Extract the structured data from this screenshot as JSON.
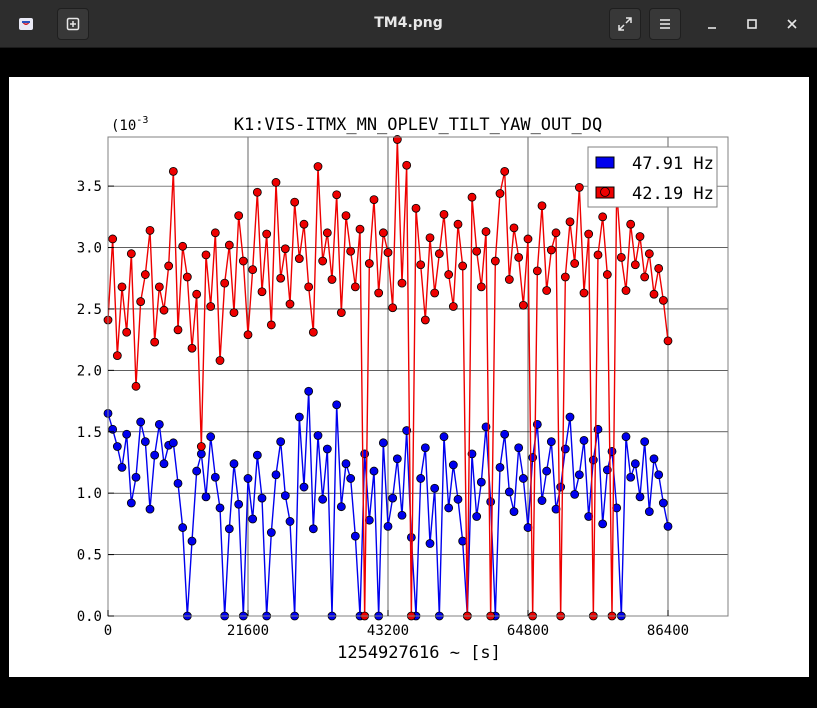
{
  "window": {
    "title": "TM4.png",
    "app_icon": "image-viewer-icon",
    "new_button_icon": "new-document-icon",
    "fullscreen_icon": "fullscreen-icon",
    "menu_icon": "hamburger-menu-icon",
    "minimize_icon": "minimize-icon",
    "maximize_icon": "maximize-icon",
    "close_icon": "close-icon"
  },
  "chart_data": {
    "type": "scatter",
    "title": "K1:VIS-ITMX_MN_OPLEV_TILT_YAW_OUT_DQ",
    "xlabel": "1254927616 ~ [s]",
    "ylabel": "",
    "y_exponent_label": "(10",
    "y_exponent_value": "-3",
    "xlim": [
      0,
      86400
    ],
    "ylim": [
      0,
      0.0039
    ],
    "xticks": [
      "0",
      "21600",
      "43200",
      "64800",
      "86400"
    ],
    "yticks": [
      "0.0",
      "0.5",
      "1.0",
      "1.5",
      "2.0",
      "2.5",
      "3.0",
      "3.5"
    ],
    "grid": true,
    "legend_position": "top-right",
    "marker": "circle with stem",
    "series": [
      {
        "name": "47.91 Hz",
        "color": "#0000ee",
        "x": [
          0,
          720,
          1440,
          2160,
          2880,
          3600,
          4320,
          5040,
          5760,
          6480,
          7200,
          7920,
          8640,
          9360,
          10080,
          10800,
          11520,
          12240,
          12960,
          13680,
          14400,
          15120,
          15840,
          16560,
          17280,
          18000,
          18720,
          19440,
          20160,
          20880,
          21600,
          22320,
          23040,
          23760,
          24480,
          25200,
          25920,
          26640,
          27360,
          28080,
          28800,
          29520,
          30240,
          30960,
          31680,
          32400,
          33120,
          33840,
          34560,
          35280,
          36000,
          36720,
          37440,
          38160,
          38880,
          39600,
          40320,
          41040,
          41760,
          42480,
          43200,
          43920,
          44640,
          45360,
          46080,
          46800,
          47520,
          48240,
          48960,
          49680,
          50400,
          51120,
          51840,
          52560,
          53280,
          54000,
          54720,
          55440,
          56160,
          56880,
          57600,
          58320,
          59040,
          59760,
          60480,
          61200,
          61920,
          62640,
          63360,
          64080,
          64800,
          65520,
          66240,
          66960,
          67680,
          68400,
          69120,
          69840,
          70560,
          71280,
          72000,
          72720,
          73440,
          74160,
          74880,
          75600,
          76320,
          77040,
          77760,
          78480,
          79200,
          79920,
          80640,
          81360,
          82080,
          82800,
          83520,
          84240,
          84960,
          85680,
          86400
        ],
        "values": [
          0.00165,
          0.00152,
          0.00138,
          0.00121,
          0.00148,
          0.00092,
          0.00113,
          0.00158,
          0.00142,
          0.00087,
          0.00131,
          0.00156,
          0.00124,
          0.00139,
          0.00141,
          0.00108,
          0.00072,
          0.0,
          0.00061,
          0.00118,
          0.00132,
          0.00097,
          0.00146,
          0.00113,
          0.00088,
          0.0,
          0.00071,
          0.00124,
          0.00091,
          0.0,
          0.00112,
          0.00079,
          0.00131,
          0.00096,
          0.0,
          0.00068,
          0.00115,
          0.00142,
          0.00098,
          0.00077,
          0.0,
          0.00162,
          0.00105,
          0.00183,
          0.00071,
          0.00147,
          0.00095,
          0.00136,
          0.0,
          0.00172,
          0.00089,
          0.00124,
          0.00112,
          0.00065,
          0.0,
          0.00132,
          0.00078,
          0.00118,
          0.0,
          0.00141,
          0.00073,
          0.00096,
          0.00128,
          0.00082,
          0.00151,
          0.00064,
          0.0,
          0.00112,
          0.00137,
          0.00059,
          0.00104,
          0.0,
          0.00146,
          0.00088,
          0.00123,
          0.00095,
          0.00061,
          0.0,
          0.00132,
          0.00081,
          0.00109,
          0.00154,
          0.00093,
          0.0,
          0.00121,
          0.00148,
          0.00101,
          0.00085,
          0.00137,
          0.00112,
          0.00072,
          0.00129,
          0.00156,
          0.00094,
          0.00118,
          0.00142,
          0.00087,
          0.00105,
          0.00136,
          0.00162,
          0.00099,
          0.00115,
          0.00143,
          0.00081,
          0.00127,
          0.00152,
          0.00075,
          0.00119,
          0.00134,
          0.00088,
          0.0,
          0.00146,
          0.00113,
          0.00124,
          0.00097,
          0.00142,
          0.00085,
          0.00128,
          0.00115,
          0.00092,
          0.00073
        ]
      },
      {
        "name": "42.19 Hz",
        "color": "#ee0000",
        "x": [
          0,
          720,
          1440,
          2160,
          2880,
          3600,
          4320,
          5040,
          5760,
          6480,
          7200,
          7920,
          8640,
          9360,
          10080,
          10800,
          11520,
          12240,
          12960,
          13680,
          14400,
          15120,
          15840,
          16560,
          17280,
          18000,
          18720,
          19440,
          20160,
          20880,
          21600,
          22320,
          23040,
          23760,
          24480,
          25200,
          25920,
          26640,
          27360,
          28080,
          28800,
          29520,
          30240,
          30960,
          31680,
          32400,
          33120,
          33840,
          34560,
          35280,
          36000,
          36720,
          37440,
          38160,
          38880,
          39600,
          40320,
          41040,
          41760,
          42480,
          43200,
          43920,
          44640,
          45360,
          46080,
          46800,
          47520,
          48240,
          48960,
          49680,
          50400,
          51120,
          51840,
          52560,
          53280,
          54000,
          54720,
          55440,
          56160,
          56880,
          57600,
          58320,
          59040,
          59760,
          60480,
          61200,
          61920,
          62640,
          63360,
          64080,
          64800,
          65520,
          66240,
          66960,
          67680,
          68400,
          69120,
          69840,
          70560,
          71280,
          72000,
          72720,
          73440,
          74160,
          74880,
          75600,
          76320,
          77040,
          77760,
          78480,
          79200,
          79920,
          80640,
          81360,
          82080,
          82800,
          83520,
          84240,
          84960,
          85680,
          86400
        ],
        "values": [
          0.00241,
          0.00307,
          0.00212,
          0.00268,
          0.00231,
          0.00295,
          0.00187,
          0.00256,
          0.00278,
          0.00314,
          0.00223,
          0.00268,
          0.00249,
          0.00285,
          0.00362,
          0.00233,
          0.00301,
          0.00276,
          0.00218,
          0.00262,
          0.00138,
          0.00294,
          0.00252,
          0.00312,
          0.00208,
          0.00271,
          0.00302,
          0.00247,
          0.00326,
          0.00289,
          0.00229,
          0.00282,
          0.00345,
          0.00264,
          0.00311,
          0.00237,
          0.00353,
          0.00275,
          0.00299,
          0.00254,
          0.00337,
          0.00291,
          0.00319,
          0.00268,
          0.00231,
          0.00366,
          0.00289,
          0.00312,
          0.00274,
          0.00343,
          0.00247,
          0.00326,
          0.00297,
          0.00268,
          0.00315,
          0.0,
          0.00287,
          0.00339,
          0.00263,
          0.00312,
          0.00296,
          0.00251,
          0.00388,
          0.00271,
          0.00367,
          0.0,
          0.00332,
          0.00286,
          0.00241,
          0.00308,
          0.00263,
          0.00295,
          0.00327,
          0.00278,
          0.00252,
          0.00319,
          0.00285,
          0.0,
          0.00341,
          0.00297,
          0.00268,
          0.00313,
          0.0,
          0.00289,
          0.00344,
          0.00362,
          0.00274,
          0.00316,
          0.00292,
          0.00253,
          0.00307,
          0.0,
          0.00281,
          0.00334,
          0.00265,
          0.00298,
          0.00312,
          0.0,
          0.00276,
          0.00321,
          0.00287,
          0.00349,
          0.00263,
          0.00311,
          0.0,
          0.00294,
          0.00325,
          0.00278,
          0.0,
          0.00347,
          0.00292,
          0.00265,
          0.00319,
          0.00286,
          0.00309,
          0.00276,
          0.00295,
          0.00262,
          0.00283,
          0.00257,
          0.00224
        ]
      }
    ]
  }
}
